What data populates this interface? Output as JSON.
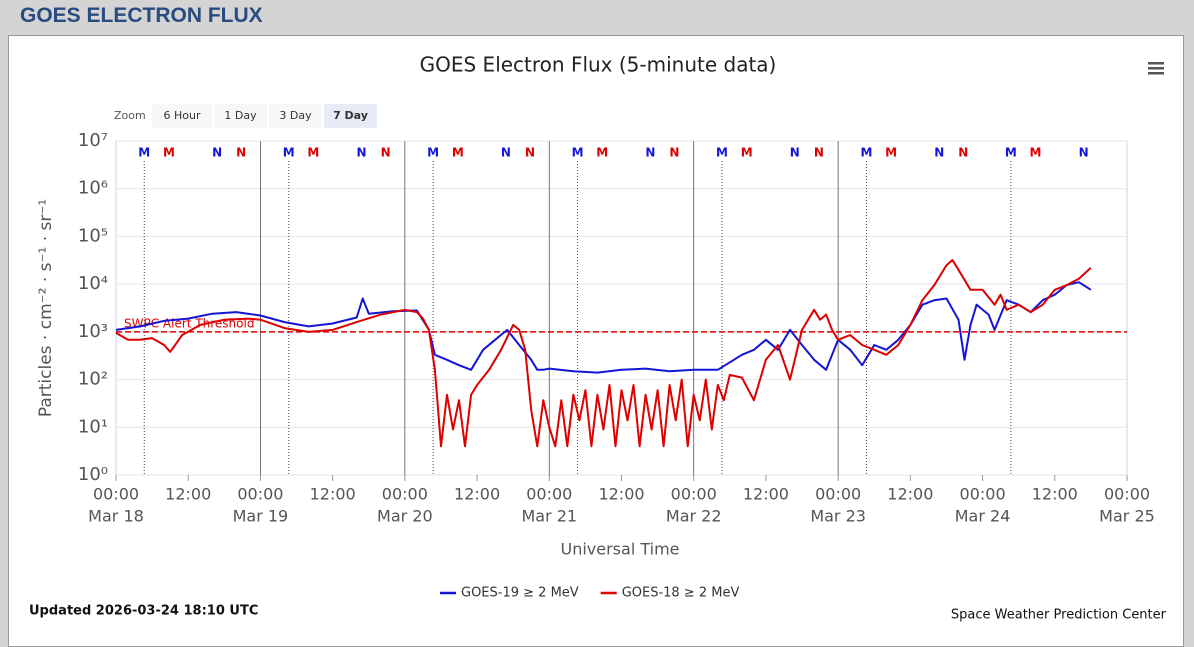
{
  "header": {
    "title": "GOES ELECTRON FLUX"
  },
  "zoom": {
    "label": "Zoom",
    "buttons": [
      "6 Hour",
      "1 Day",
      "3 Day",
      "7 Day"
    ],
    "selected": 3
  },
  "footer": {
    "updated": "Updated 2026-03-24 18:10 UTC",
    "credit": "Space Weather Prediction Center"
  },
  "chart_data": {
    "type": "line",
    "title": "GOES Electron Flux (5-minute data)",
    "x_label": "Universal Time",
    "y_label": "Particles · cm⁻² · s⁻¹ · sr⁻¹",
    "log_y": true,
    "grid": true,
    "legend": "bottom",
    "xlim": [
      0,
      168
    ],
    "ylim": [
      1,
      10000000
    ],
    "xticks": [
      {
        "value": 0,
        "label": "00:00"
      },
      {
        "value": 12,
        "label": "12:00"
      },
      {
        "value": 24,
        "label": "00:00"
      },
      {
        "value": 36,
        "label": "12:00"
      },
      {
        "value": 48,
        "label": "00:00"
      },
      {
        "value": 60,
        "label": "12:00"
      },
      {
        "value": 72,
        "label": "00:00"
      },
      {
        "value": 84,
        "label": "12:00"
      },
      {
        "value": 96,
        "label": "00:00"
      },
      {
        "value": 108,
        "label": "12:00"
      },
      {
        "value": 120,
        "label": "00:00"
      },
      {
        "value": 132,
        "label": "12:00"
      },
      {
        "value": 144,
        "label": "00:00"
      },
      {
        "value": 156,
        "label": "12:00"
      },
      {
        "value": 168,
        "label": "00:00"
      }
    ],
    "date_labels": [
      {
        "value": 0,
        "label": "Mar 18"
      },
      {
        "value": 24,
        "label": "Mar 19"
      },
      {
        "value": 48,
        "label": "Mar 20"
      },
      {
        "value": 72,
        "label": "Mar 21"
      },
      {
        "value": 96,
        "label": "Mar 22"
      },
      {
        "value": 120,
        "label": "Mar 23"
      },
      {
        "value": 144,
        "label": "Mar 24"
      },
      {
        "value": 168,
        "label": "Mar 25"
      }
    ],
    "day_lines": [
      24,
      48,
      72,
      96,
      120
    ],
    "yticks": [
      {
        "value": 1,
        "label": "10⁰"
      },
      {
        "value": 10,
        "label": "10¹"
      },
      {
        "value": 100,
        "label": "10²"
      },
      {
        "value": 1000,
        "label": "10³"
      },
      {
        "value": 10000,
        "label": "10⁴"
      },
      {
        "value": 100000,
        "label": "10⁵"
      },
      {
        "value": 1000000,
        "label": "10⁶"
      },
      {
        "value": 10000000,
        "label": "10⁷"
      }
    ],
    "threshold": {
      "value": 1000,
      "label": "SWPC Alert Threshold",
      "color": "#dd0000"
    },
    "markers": [
      {
        "label": "M",
        "color": "#1515d6",
        "line": true,
        "x": [
          4.7,
          28.7,
          52.7,
          76.7,
          100.7,
          124.7,
          148.7
        ]
      },
      {
        "label": "M",
        "color": "#dd0000",
        "line": false,
        "x": [
          8.8,
          32.8,
          56.8,
          80.8,
          104.8,
          128.8,
          152.8
        ]
      },
      {
        "label": "N",
        "color": "#1515d6",
        "line": false,
        "x": [
          16.8,
          40.8,
          64.8,
          88.8,
          112.8,
          136.8,
          160.8
        ]
      },
      {
        "label": "N",
        "color": "#dd0000",
        "line": false,
        "x": [
          20.8,
          44.8,
          68.8,
          92.8,
          116.8,
          140.8
        ]
      }
    ],
    "series": [
      {
        "name": "GOES-19 ≥ 2 MeV",
        "color": "#1515d6",
        "x": [
          0,
          4,
          8,
          12,
          16,
          20,
          24,
          28,
          32,
          36,
          40,
          41,
          42,
          46,
          50,
          52,
          53,
          55,
          57,
          59,
          61,
          63,
          65,
          67,
          69,
          70,
          71,
          72,
          76,
          80,
          84,
          88,
          92,
          96,
          100,
          104,
          106,
          108,
          110,
          112,
          114,
          116,
          118,
          120,
          122,
          124,
          126,
          128,
          130,
          132,
          134,
          136,
          138,
          140,
          141,
          142,
          143,
          145,
          146,
          148,
          150,
          152,
          154,
          156,
          158,
          160,
          162
        ],
        "values": [
          1100,
          1300,
          1700,
          1900,
          2400,
          2600,
          2200,
          1600,
          1300,
          1500,
          2000,
          5000,
          2400,
          2700,
          2800,
          1100,
          330,
          260,
          200,
          160,
          420,
          680,
          1100,
          530,
          260,
          160,
          160,
          170,
          150,
          140,
          160,
          170,
          150,
          160,
          160,
          330,
          420,
          680,
          420,
          1100,
          530,
          260,
          160,
          680,
          420,
          200,
          530,
          420,
          680,
          1400,
          3700,
          4600,
          5000,
          1800,
          260,
          1400,
          3700,
          2300,
          1100,
          4600,
          3700,
          2600,
          4600,
          6000,
          9600,
          11000,
          7600
        ]
      },
      {
        "name": "GOES-18 ≥ 2 MeV",
        "color": "#dd0000",
        "x": [
          0,
          2,
          4,
          6,
          8,
          9,
          11,
          14,
          18,
          22,
          24,
          28,
          32,
          36,
          40,
          44,
          48,
          50,
          51,
          52,
          53,
          54,
          55,
          56,
          57,
          58,
          59,
          60,
          62,
          64,
          66,
          67,
          68,
          69,
          70,
          71,
          72,
          73,
          74,
          75,
          76,
          77,
          78,
          79,
          80,
          81,
          82,
          83,
          84,
          85,
          86,
          87,
          88,
          89,
          90,
          91,
          92,
          93,
          94,
          95,
          96,
          97,
          98,
          99,
          100,
          101,
          102,
          104,
          106,
          108,
          110,
          112,
          114,
          116,
          117,
          118,
          119,
          120,
          122,
          124,
          126,
          128,
          130,
          132,
          134,
          136,
          138,
          139,
          140,
          142,
          144,
          146,
          147,
          148,
          150,
          152,
          154,
          156,
          158,
          160,
          162
        ],
        "values": [
          950,
          680,
          680,
          740,
          530,
          380,
          860,
          1400,
          1800,
          1900,
          1800,
          1200,
          1000,
          1100,
          1600,
          2300,
          2900,
          2600,
          1900,
          1100,
          160,
          4,
          48,
          9,
          37,
          4,
          48,
          77,
          160,
          420,
          1400,
          1100,
          420,
          23,
          4,
          37,
          10,
          4,
          37,
          4,
          48,
          14,
          60,
          4,
          48,
          9,
          77,
          4,
          60,
          14,
          77,
          4,
          48,
          9,
          60,
          4,
          77,
          14,
          100,
          4,
          48,
          14,
          100,
          9,
          77,
          37,
          125,
          110,
          37,
          260,
          530,
          100,
          1100,
          2900,
          1800,
          2300,
          1100,
          680,
          860,
          530,
          420,
          330,
          530,
          1400,
          4600,
          9600,
          25000,
          32000,
          20000,
          7600,
          7600,
          3700,
          6000,
          2900,
          3700,
          2600,
          3700,
          7600,
          9600,
          13000,
          22000
        ]
      }
    ]
  }
}
